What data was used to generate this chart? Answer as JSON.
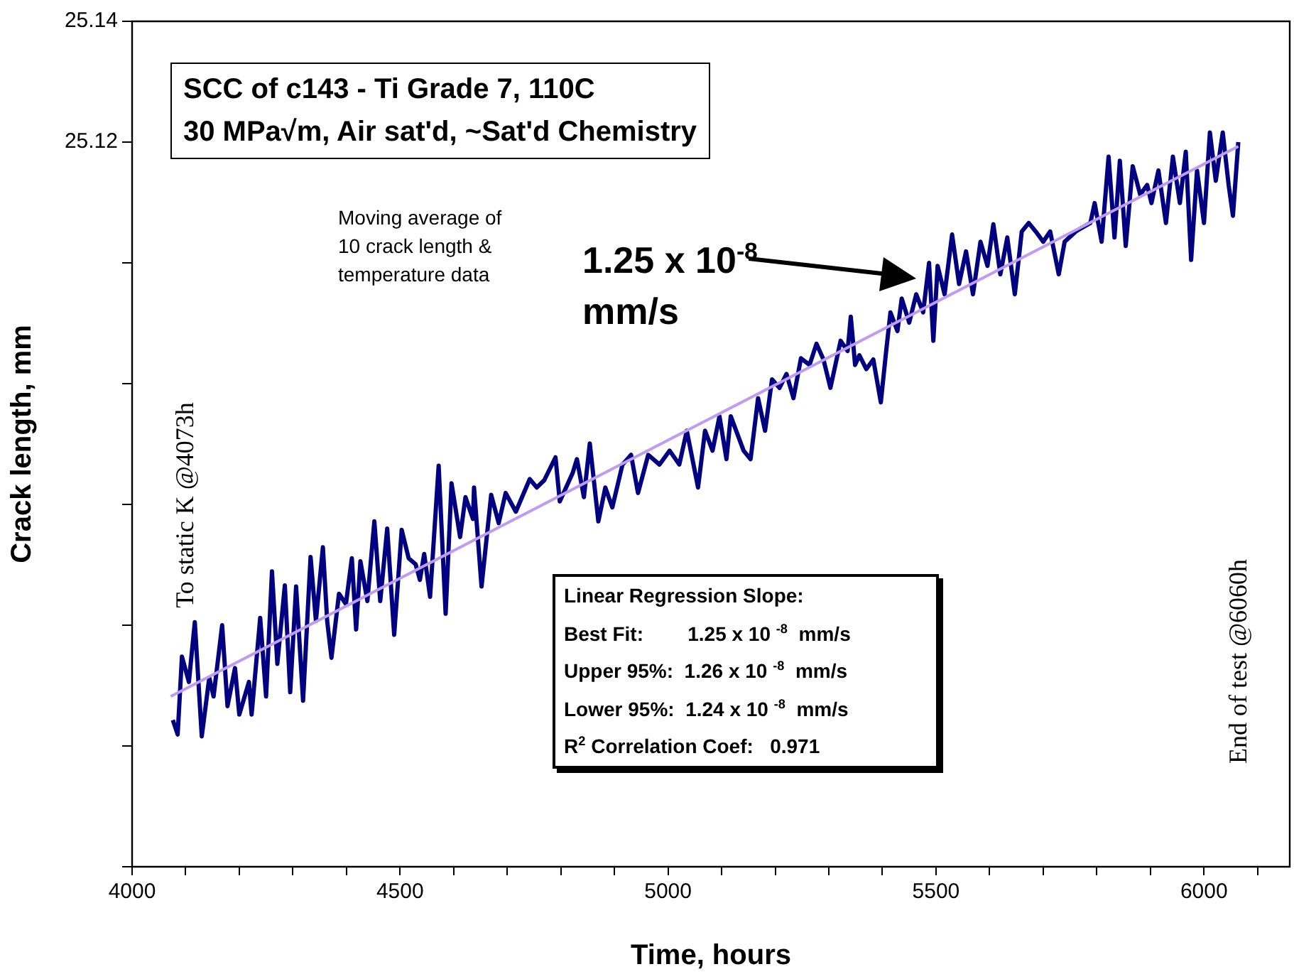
{
  "chart_data": {
    "type": "line",
    "title": "SCC of c143 - Ti Grade 7, 110C",
    "subtitle": "30 MPa√m, Air sat'd, ~Sat'd Chemistry",
    "xlabel": "Time, hours",
    "ylabel": "Crack length, mm",
    "xlim": [
      4000,
      6160
    ],
    "ylim": [
      25.0,
      25.14
    ],
    "xticks": [
      4000,
      {
        "value": 4100,
        "label": null
      },
      {
        "value": 4200,
        "label": null
      },
      {
        "value": 4300,
        "label": null
      },
      {
        "value": 4400,
        "label": null
      },
      4500,
      {
        "value": 4600,
        "label": null
      },
      {
        "value": 4700,
        "label": null
      },
      {
        "value": 4800,
        "label": null
      },
      {
        "value": 4900,
        "label": null
      },
      5000,
      {
        "value": 5100,
        "label": null
      },
      {
        "value": 5200,
        "label": null
      },
      {
        "value": 5300,
        "label": null
      },
      {
        "value": 5400,
        "label": null
      },
      5500,
      {
        "value": 5600,
        "label": null
      },
      {
        "value": 5700,
        "label": null
      },
      {
        "value": 5800,
        "label": null
      },
      {
        "value": 5900,
        "label": null
      },
      6000,
      {
        "value": 6100,
        "label": null
      }
    ],
    "yticks": [
      {
        "value": 25.0,
        "label": null
      },
      {
        "value": 25.02,
        "label": null
      },
      {
        "value": 25.04,
        "label": null
      },
      {
        "value": 25.06,
        "label": null
      },
      {
        "value": 25.08,
        "label": null
      },
      {
        "value": 25.1,
        "label": null
      },
      25.12,
      25.14
    ],
    "annotations": [
      "Moving average of\n10 crack length &\ntemperature data",
      "1.25 x 10$^{-8}$\nmm/s",
      "Linear Regression Slope:\nBest Fit:        1.25 x 10 $^{-8}$  mm/s\nUpper 95%:  1.26 x 10 $^{-8}$  mm/s\nLower 95%:  1.24 x 10 $^{-8}$  mm/s\nR$^{2}$ Correlation Coef:   0.971",
      "To static K @4073h",
      "End of test @6060h"
    ],
    "series": [
      {
        "color": "#000080",
        "x": [
          4076,
          4085,
          4093,
          4106,
          4117,
          4130,
          4144,
          4152,
          4168,
          4178,
          4192,
          4200,
          4218,
          4223,
          4239,
          4250,
          4261,
          4271,
          4285,
          4295,
          4306,
          4319,
          4333,
          4343,
          4356,
          4364,
          4372,
          4386,
          4399,
          4410,
          4418,
          4426,
          4439,
          4452,
          4463,
          4476,
          4489,
          4503,
          4516,
          4529,
          4537,
          4545,
          4556,
          4572,
          4585,
          4596,
          4612,
          4622,
          4636,
          4638,
          4652,
          4670,
          4684,
          4697,
          4716,
          4742,
          4755,
          4769,
          4790,
          4798,
          4822,
          4830,
          4843,
          4854,
          4870,
          4883,
          4896,
          4915,
          4931,
          4944,
          4963,
          4984,
          5003,
          5021,
          5035,
          5056,
          5069,
          5083,
          5096,
          5109,
          5117,
          5141,
          5154,
          5168,
          5181,
          5194,
          5208,
          5221,
          5234,
          5248,
          5264,
          5277,
          5290,
          5303,
          5322,
          5335,
          5341,
          5349,
          5357,
          5370,
          5383,
          5397,
          5407,
          5415,
          5428,
          5436,
          5450,
          5463,
          5476,
          5487,
          5495,
          5503,
          5516,
          5530,
          5543,
          5556,
          5569,
          5583,
          5596,
          5607,
          5620,
          5633,
          5647,
          5660,
          5673,
          5686,
          5700,
          5713,
          5729,
          5740,
          5761,
          5774,
          5788,
          5796,
          5809,
          5822,
          5833,
          5843,
          5854,
          5867,
          5881,
          5894,
          5902,
          5915,
          5929,
          5942,
          5955,
          5966,
          5976,
          5987,
          6000,
          6011,
          6022,
          6035,
          6046,
          6054,
          6064
        ],
        "values": [
          25.0243,
          25.0219,
          25.0348,
          25.0306,
          25.0405,
          25.0216,
          25.0313,
          25.0282,
          25.04,
          25.0266,
          25.0329,
          25.0252,
          25.0306,
          25.0252,
          25.0412,
          25.0282,
          25.0489,
          25.0336,
          25.0466,
          25.0289,
          25.0464,
          25.0275,
          25.0513,
          25.0407,
          25.0529,
          25.0407,
          25.0346,
          25.0452,
          25.0435,
          25.0511,
          25.0393,
          25.0506,
          25.044,
          25.0572,
          25.044,
          25.056,
          25.0384,
          25.0558,
          25.0511,
          25.0501,
          25.0475,
          25.0518,
          25.0447,
          25.0664,
          25.0419,
          25.0635,
          25.0546,
          25.0612,
          25.0576,
          25.0628,
          25.0464,
          25.0616,
          25.0569,
          25.0619,
          25.0588,
          25.0642,
          25.0628,
          25.064,
          25.0678,
          25.0605,
          25.0652,
          25.0675,
          25.0612,
          25.0701,
          25.0572,
          25.0628,
          25.0595,
          25.0666,
          25.0682,
          25.0619,
          25.0682,
          25.0666,
          25.0689,
          25.0666,
          25.0722,
          25.0628,
          25.0722,
          25.0689,
          25.0746,
          25.0675,
          25.0746,
          25.0689,
          25.0675,
          25.0776,
          25.0722,
          25.0807,
          25.0793,
          25.0816,
          25.0776,
          25.0842,
          25.0831,
          25.0866,
          25.084,
          25.0793,
          25.0871,
          25.0854,
          25.0911,
          25.0831,
          25.0847,
          25.0824,
          25.084,
          25.0769,
          25.0854,
          25.0918,
          25.0887,
          25.0941,
          25.0901,
          25.0948,
          25.0918,
          25.1,
          25.0871,
          25.0995,
          25.0948,
          25.1047,
          25.0965,
          25.1019,
          25.0948,
          25.1035,
          25.0995,
          25.1064,
          25.0981,
          25.1042,
          25.0948,
          25.1052,
          25.1066,
          25.1052,
          25.1035,
          25.1052,
          25.0981,
          25.1035,
          25.1052,
          25.1059,
          25.1066,
          25.1099,
          25.1035,
          25.1176,
          25.1042,
          25.1169,
          25.1028,
          25.116,
          25.1113,
          25.1129,
          25.1099,
          25.1153,
          25.1066,
          25.1176,
          25.1099,
          25.1184,
          25.1005,
          25.1153,
          25.1066,
          25.1216,
          25.1136,
          25.1216,
          25.1129,
          25.1078,
          25.12
        ]
      },
      {
        "type": "line",
        "color": "#c09cf0",
        "x": [
          4072,
          6064
        ],
        "values": [
          25.0282,
          25.1193
        ]
      }
    ]
  }
}
